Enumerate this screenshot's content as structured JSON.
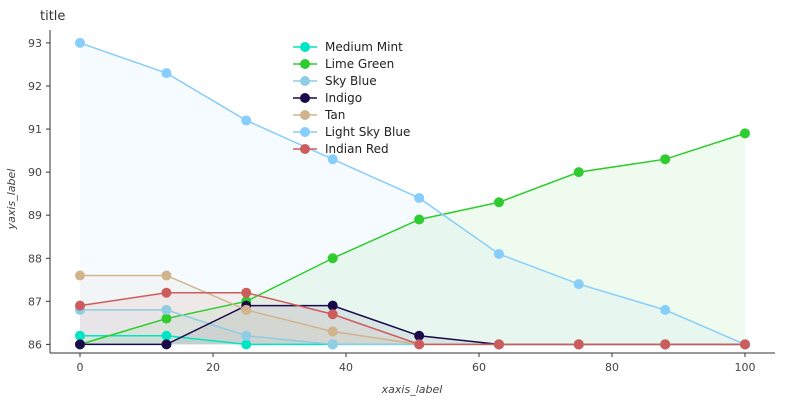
{
  "chart_data": {
    "type": "line",
    "title": "title",
    "xlabel": "xaxis_label",
    "ylabel": "yaxis_label",
    "xlim": [
      0,
      100
    ],
    "ylim": [
      85.8,
      93.3
    ],
    "xticks": [
      0,
      20,
      40,
      60,
      80,
      100
    ],
    "yticks": [
      86,
      87,
      88,
      89,
      90,
      91,
      92,
      93
    ],
    "grid": false,
    "legend_position": "top-center",
    "series": [
      {
        "name": "Medium Mint",
        "color": "#00e5c4",
        "x": [
          0,
          13,
          25,
          38,
          51,
          63,
          75,
          88,
          100
        ],
        "y": [
          86.2,
          86.2,
          86.0,
          86.0,
          86.0,
          86.0,
          86.0,
          86.0,
          86.0
        ]
      },
      {
        "name": "Lime Green",
        "color": "#2ecc2e",
        "x": [
          0,
          13,
          25,
          38,
          51,
          63,
          75,
          88,
          100
        ],
        "y": [
          86.0,
          86.6,
          87.0,
          88.0,
          88.9,
          89.3,
          90.0,
          90.3,
          90.9
        ]
      },
      {
        "name": "Sky Blue",
        "color": "#8ecde3",
        "x": [
          0,
          13,
          25,
          38,
          51,
          63,
          75,
          88,
          100
        ],
        "y": [
          86.8,
          86.8,
          86.2,
          86.0,
          86.0,
          86.0,
          86.0,
          86.0,
          86.0
        ]
      },
      {
        "name": "Indigo",
        "color": "#1a0a4c",
        "x": [
          0,
          13,
          25,
          38,
          51,
          63,
          75,
          88,
          100
        ],
        "y": [
          86.0,
          86.0,
          86.9,
          86.9,
          86.2,
          86.0,
          86.0,
          86.0,
          86.0
        ]
      },
      {
        "name": "Tan",
        "color": "#d2b48c",
        "x": [
          0,
          13,
          25,
          38,
          51,
          63,
          75,
          88,
          100
        ],
        "y": [
          87.6,
          87.6,
          86.8,
          86.3,
          86.0,
          86.0,
          86.0,
          86.0,
          86.0
        ]
      },
      {
        "name": "Light Sky Blue",
        "color": "#87cefa",
        "x": [
          0,
          13,
          25,
          38,
          51,
          63,
          75,
          88,
          100
        ],
        "y": [
          93.0,
          92.3,
          91.2,
          90.3,
          89.4,
          88.1,
          87.4,
          86.8,
          86.0
        ]
      },
      {
        "name": "Indian Red",
        "color": "#cd5c5c",
        "x": [
          0,
          13,
          25,
          38,
          51,
          63,
          75,
          88,
          100
        ],
        "y": [
          86.9,
          87.2,
          87.2,
          86.7,
          86.0,
          86.0,
          86.0,
          86.0,
          86.0
        ]
      }
    ]
  }
}
